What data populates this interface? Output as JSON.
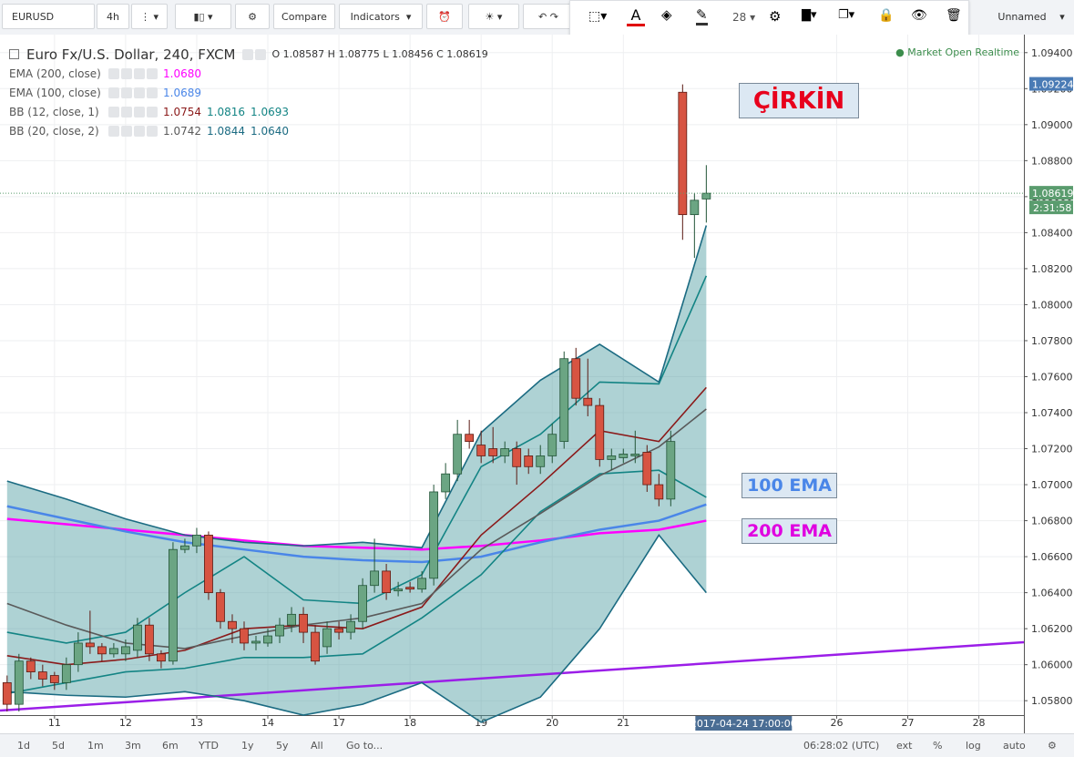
{
  "toolbar": {
    "symbol": "EURUSD",
    "interval": "4h",
    "compare": "Compare",
    "indicators": "Indicators",
    "font_size": "28",
    "layout": "Unnamed"
  },
  "legend": {
    "title": "Euro Fx/U.S. Dollar, 240, FXCM",
    "o": "O",
    "h": "H",
    "l": "L",
    "c": "C",
    "status": "Market Open Realtime"
  },
  "chart_data": {
    "type": "candlestick",
    "open": [
      1.059,
      1.0578,
      1.0602,
      1.0596,
      1.0594,
      1.059,
      1.06,
      1.0612,
      1.061,
      1.0606,
      1.0606,
      1.0608,
      1.0622,
      1.0606,
      1.0602,
      1.0664,
      1.0666,
      1.0672,
      1.064,
      1.0624,
      1.062,
      1.0612,
      1.0612,
      1.0616,
      1.0622,
      1.0628,
      1.0618,
      1.061,
      1.062,
      1.0618,
      1.0624,
      1.0644,
      1.0652,
      1.0641,
      1.0643,
      1.0642,
      1.0648,
      1.0696,
      1.0706,
      1.0728,
      1.0722,
      1.072,
      1.0716,
      1.072,
      1.0716,
      1.071,
      1.0716,
      1.0724,
      1.077,
      1.0748,
      1.0744,
      1.0714,
      1.0715,
      1.0716,
      1.0718,
      1.07,
      1.0692,
      1.0918,
      1.085,
      1.08587
    ],
    "high": [
      1.0594,
      1.0606,
      1.0604,
      1.06,
      1.0596,
      1.0604,
      1.0618,
      1.063,
      1.0612,
      1.0612,
      1.0614,
      1.0626,
      1.0626,
      1.0608,
      1.0668,
      1.067,
      1.0676,
      1.0674,
      1.0642,
      1.0628,
      1.0624,
      1.0616,
      1.062,
      1.0626,
      1.0632,
      1.0632,
      1.0622,
      1.0624,
      1.0624,
      1.0628,
      1.0648,
      1.067,
      1.0656,
      1.0646,
      1.0646,
      1.0652,
      1.07,
      1.0712,
      1.0736,
      1.0736,
      1.073,
      1.0732,
      1.0724,
      1.0724,
      1.072,
      1.0722,
      1.0734,
      1.0774,
      1.0776,
      1.077,
      1.0748,
      1.072,
      1.072,
      1.073,
      1.0722,
      1.0706,
      1.073,
      1.09224,
      1.0862,
      1.08775
    ],
    "low": [
      1.0574,
      1.0574,
      1.0592,
      1.0588,
      1.0586,
      1.0586,
      1.0596,
      1.0606,
      1.0602,
      1.0604,
      1.0602,
      1.0604,
      1.0602,
      1.0598,
      1.06,
      1.0662,
      1.0662,
      1.0636,
      1.062,
      1.0612,
      1.0608,
      1.0608,
      1.061,
      1.0612,
      1.0618,
      1.0612,
      1.06,
      1.0606,
      1.0614,
      1.0614,
      1.062,
      1.064,
      1.0636,
      1.0638,
      1.064,
      1.064,
      1.0644,
      1.0692,
      1.0702,
      1.072,
      1.0712,
      1.0712,
      1.0712,
      1.07,
      1.0706,
      1.0706,
      1.0712,
      1.072,
      1.0744,
      1.0738,
      1.071,
      1.0708,
      1.0712,
      1.0712,
      1.0696,
      1.0688,
      1.0688,
      1.0836,
      1.0826,
      1.08456
    ],
    "close": [
      1.0578,
      1.0602,
      1.0596,
      1.0592,
      1.059,
      1.06,
      1.0612,
      1.061,
      1.0606,
      1.0609,
      1.061,
      1.0622,
      1.0606,
      1.0602,
      1.0664,
      1.0666,
      1.0672,
      1.064,
      1.0624,
      1.062,
      1.0612,
      1.0613,
      1.0616,
      1.0622,
      1.0628,
      1.0618,
      1.0602,
      1.062,
      1.0618,
      1.0624,
      1.0644,
      1.0652,
      1.064,
      1.0642,
      1.0642,
      1.0648,
      1.0696,
      1.0706,
      1.0728,
      1.0724,
      1.0716,
      1.0716,
      1.072,
      1.071,
      1.071,
      1.0716,
      1.0728,
      1.077,
      1.0748,
      1.0744,
      1.0714,
      1.0716,
      1.0717,
      1.0717,
      1.07,
      1.0692,
      1.0724,
      1.085,
      1.0858,
      1.08619
    ],
    "up_color": "#6ba583",
    "down_color": "#d75442",
    "xlim": [
      -0.6,
      85.8
    ],
    "xticks": [
      {
        "value": 4,
        "label": "11"
      },
      {
        "value": 10,
        "label": "12"
      },
      {
        "value": 16,
        "label": "13"
      },
      {
        "value": 22,
        "label": "14"
      },
      {
        "value": 28,
        "label": "17"
      },
      {
        "value": 34,
        "label": "18"
      },
      {
        "value": 40,
        "label": "19"
      },
      {
        "value": 46,
        "label": "20"
      },
      {
        "value": 52,
        "label": "21"
      },
      {
        "value": 70,
        "label": "26"
      },
      {
        "value": 76,
        "label": "27"
      },
      {
        "value": 82,
        "label": "28"
      }
    ],
    "ylim": [
      1.0572,
      1.0949
    ],
    "yticks": [
      {
        "value": 1.058,
        "label": "1.05800"
      },
      {
        "value": 1.06,
        "label": "1.06000"
      },
      {
        "value": 1.062,
        "label": "1.06200"
      },
      {
        "value": 1.064,
        "label": "1.06400"
      },
      {
        "value": 1.066,
        "label": "1.06600"
      },
      {
        "value": 1.068,
        "label": "1.06800"
      },
      {
        "value": 1.07,
        "label": "1.07000"
      },
      {
        "value": 1.072,
        "label": "1.07200"
      },
      {
        "value": 1.074,
        "label": "1.07400"
      },
      {
        "value": 1.076,
        "label": "1.07600"
      },
      {
        "value": 1.078,
        "label": "1.07800"
      },
      {
        "value": 1.08,
        "label": "1.08000"
      },
      {
        "value": 1.082,
        "label": "1.08200"
      },
      {
        "value": 1.084,
        "label": "1.08400"
      },
      {
        "value": 1.086,
        "label": "1.08600"
      },
      {
        "value": 1.088,
        "label": "1.08800"
      },
      {
        "value": 1.09,
        "label": "1.09000"
      },
      {
        "value": 1.092,
        "label": "1.09200"
      },
      {
        "value": 1.094,
        "label": "1.09400"
      }
    ],
    "grid": true,
    "band_fill": "#4c9ba0",
    "line_x": [
      0,
      5,
      10,
      15,
      20,
      25,
      30,
      35,
      40,
      45,
      50,
      55,
      59
    ],
    "indicators": [
      {
        "name": "EMA (200, close)",
        "readout": [
          "1.0680"
        ],
        "lines": [
          {
            "color": "#ff00ff",
            "values": [
              1.0681,
              1.0678,
              1.0675,
              1.0672,
              1.0669,
              1.0666,
              1.0665,
              1.0664,
              1.0666,
              1.0669,
              1.0673,
              1.0675,
              1.068
            ]
          }
        ]
      },
      {
        "name": "EMA (100, close)",
        "readout": [
          "1.0689"
        ],
        "lines": [
          {
            "color": "#4a86e8",
            "values": [
              1.0688,
              1.0681,
              1.0674,
              1.0668,
              1.0664,
              1.066,
              1.0658,
              1.0657,
              1.066,
              1.0668,
              1.0675,
              1.068,
              1.0689
            ]
          }
        ]
      },
      {
        "name": "BB (12, close, 1)",
        "readout": [
          "1.0754",
          "1.0816",
          "1.0693"
        ],
        "lines": [
          {
            "color": "#8b1a1a",
            "values": [
              1.0605,
              1.06,
              1.0603,
              1.0608,
              1.062,
              1.0622,
              1.062,
              1.0632,
              1.0672,
              1.07,
              1.073,
              1.0724,
              1.0754
            ]
          },
          {
            "color": "#138484",
            "values": [
              1.0618,
              1.0612,
              1.0618,
              1.064,
              1.066,
              1.0636,
              1.0634,
              1.065,
              1.071,
              1.0728,
              1.0757,
              1.0756,
              1.0816
            ]
          },
          {
            "color": "#138484",
            "values": [
              1.0584,
              1.059,
              1.0596,
              1.0598,
              1.0604,
              1.0604,
              1.0606,
              1.0626,
              1.065,
              1.0685,
              1.0706,
              1.0708,
              1.0693
            ]
          }
        ]
      },
      {
        "name": "BB (20, close, 2)",
        "readout": [
          "1.0742",
          "1.0844",
          "1.0640"
        ],
        "lines": [
          {
            "color": "#5a5a5a",
            "values": [
              1.0634,
              1.0622,
              1.0612,
              1.0609,
              1.0616,
              1.0622,
              1.0626,
              1.0634,
              1.0664,
              1.0684,
              1.0705,
              1.0721,
              1.0742
            ]
          },
          {
            "color": "#1b6b82",
            "values": [
              1.0702,
              1.0692,
              1.0681,
              1.0672,
              1.0668,
              1.0666,
              1.0668,
              1.0665,
              1.0729,
              1.0758,
              1.0778,
              1.0757,
              1.0844
            ]
          },
          {
            "color": "#1b6b82",
            "values": [
              1.0585,
              1.0583,
              1.0582,
              1.0585,
              1.058,
              1.0572,
              1.0578,
              1.059,
              1.0568,
              1.0582,
              1.062,
              1.0672,
              1.064
            ]
          }
        ]
      }
    ],
    "trendline": {
      "color": "#9b1ee8",
      "x": [
        -0.6,
        85.8
      ],
      "values": [
        1.05745,
        1.06125
      ]
    },
    "crosshair_time": "2017-04-24 17:00:00",
    "countdown": "2:31:58"
  },
  "annotations": [
    {
      "text": "ÇİRKİN",
      "color": "#e8001c"
    },
    {
      "text": "100 EMA",
      "color": "#4a86e8"
    },
    {
      "text": "200 EMA",
      "color": "#e000e0"
    }
  ],
  "bottom_bar": {
    "ranges": [
      "1d",
      "5d",
      "1m",
      "3m",
      "6m",
      "YTD",
      "1y",
      "5y",
      "All"
    ],
    "goto": "Go to...",
    "clock": "06:28:02 (UTC)",
    "options": [
      "ext",
      "%",
      "log",
      "auto"
    ]
  }
}
